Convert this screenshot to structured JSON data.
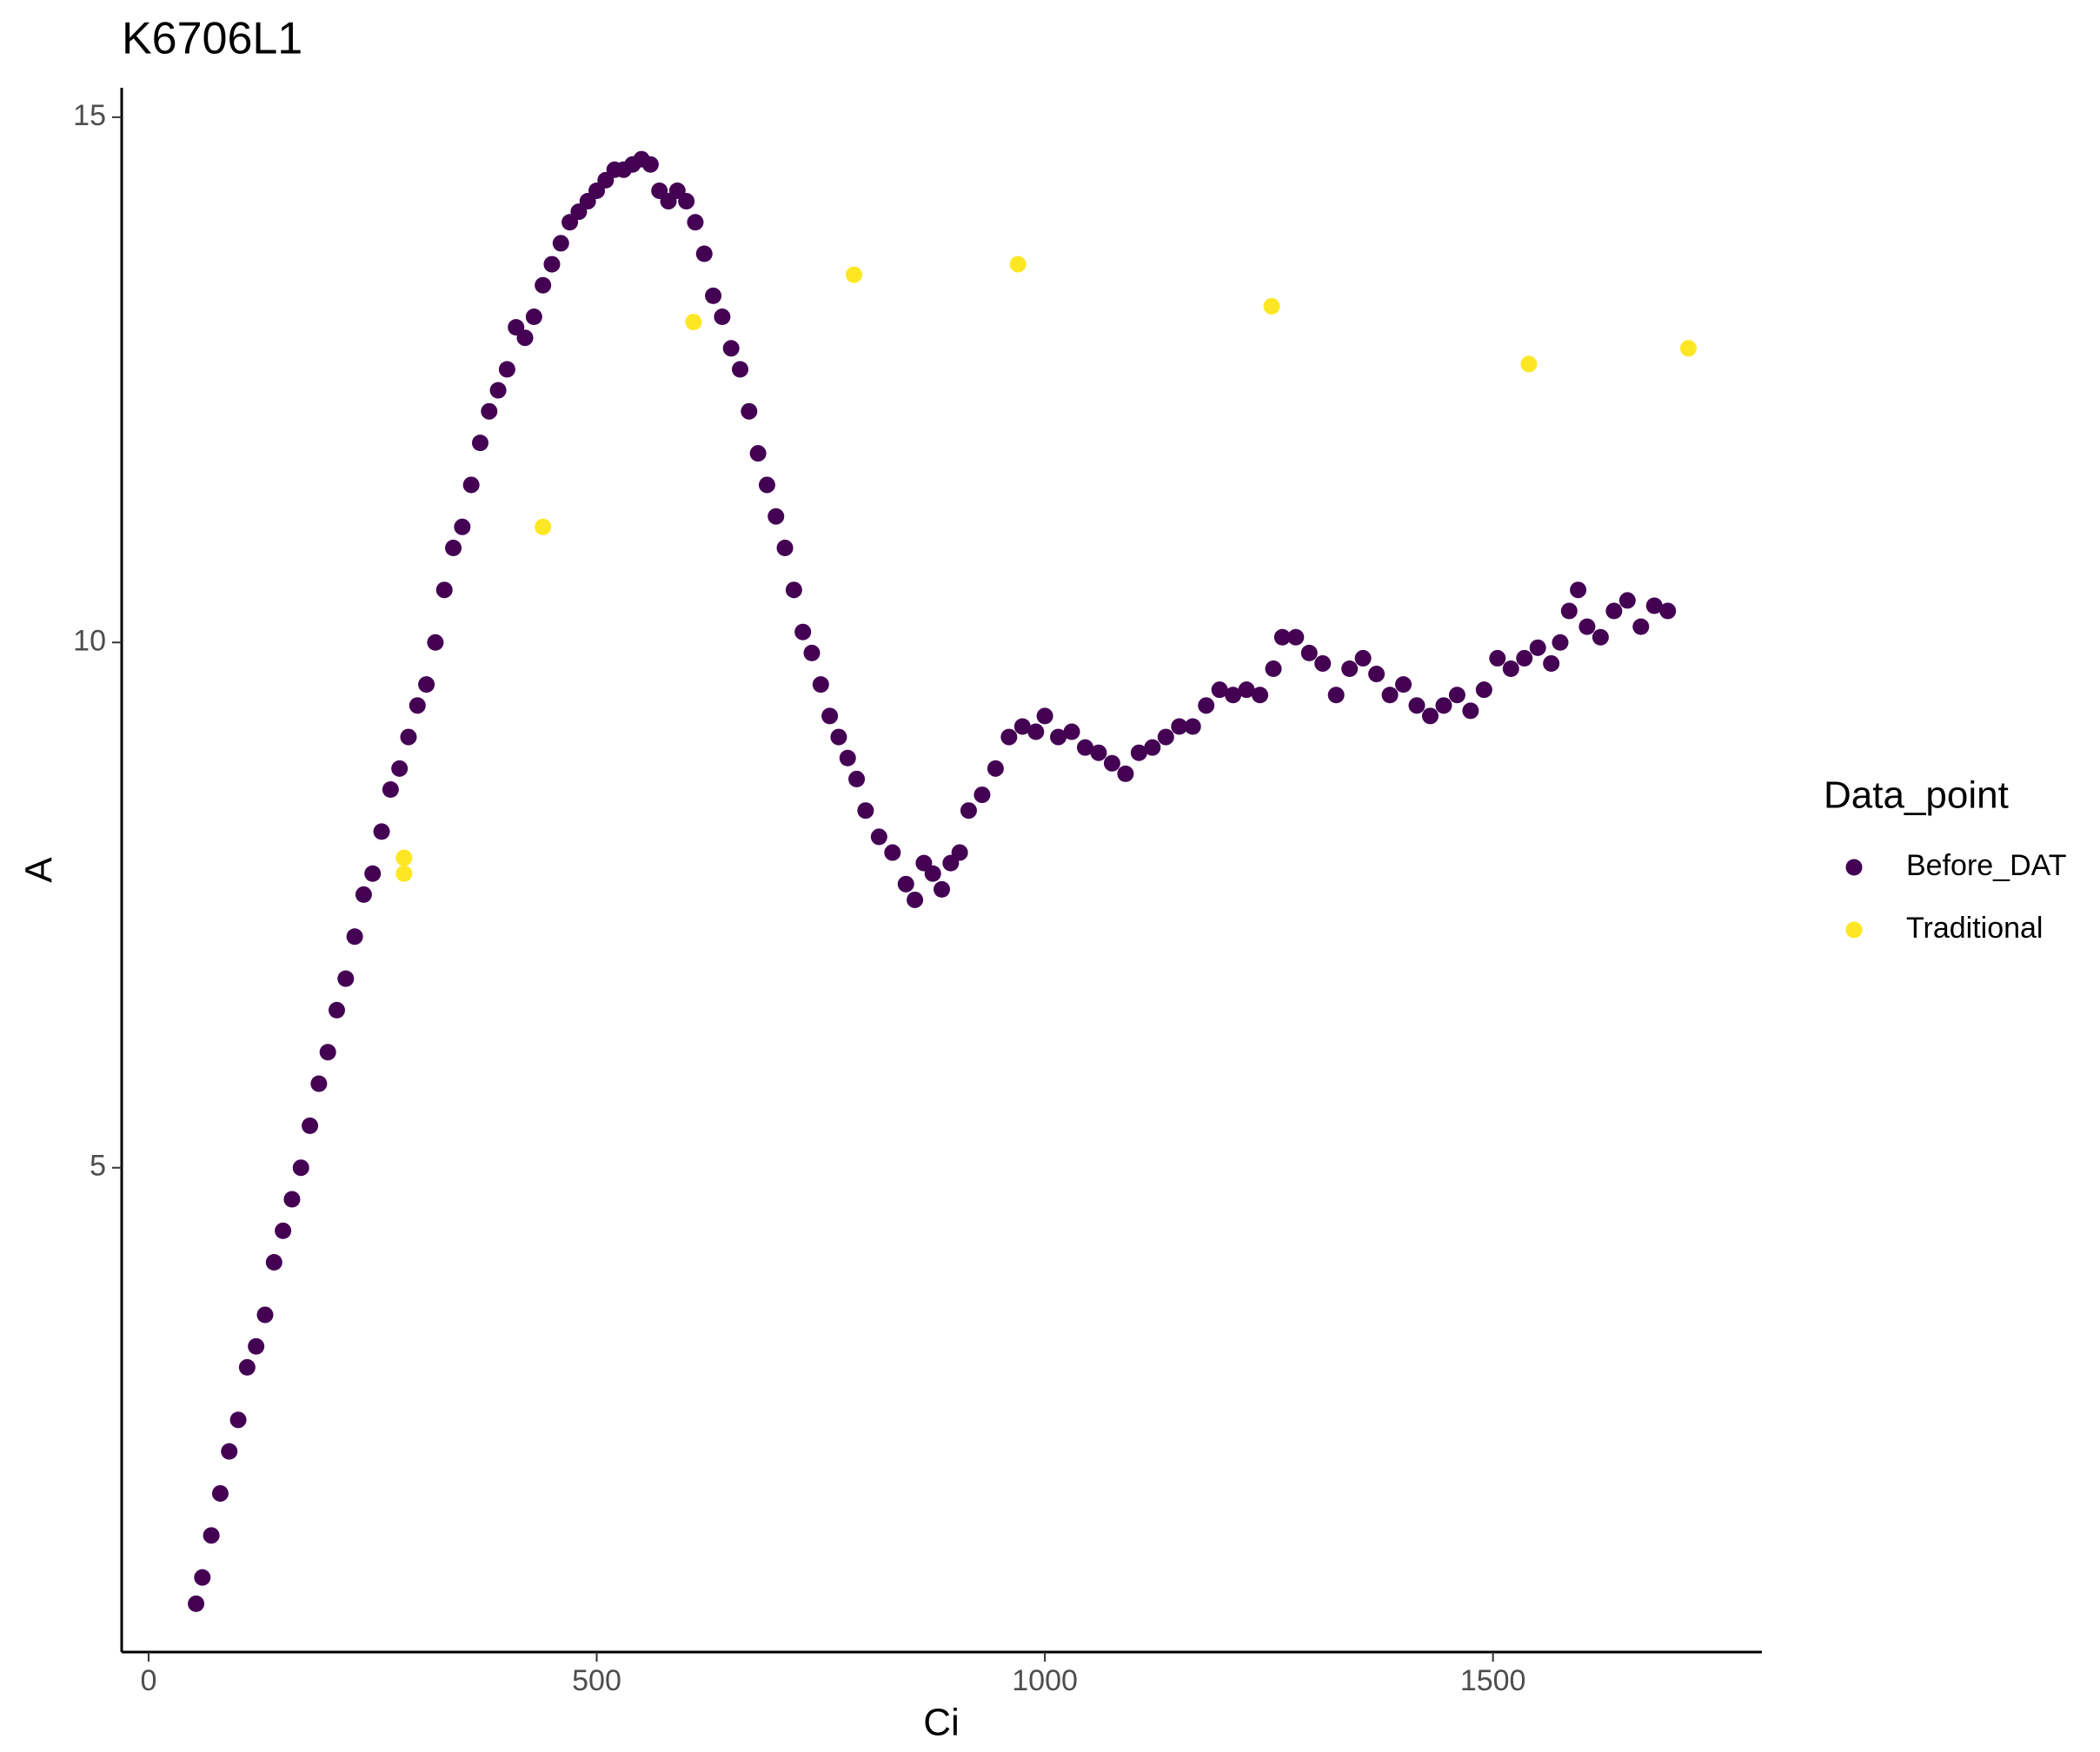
{
  "chart_data": {
    "type": "scatter",
    "title": "K6706L1",
    "x_label": "Ci",
    "y_label": "A",
    "legend_title": "Data_point",
    "legend_position": "right",
    "xlim": [
      -30,
      1800
    ],
    "ylim": [
      0.39,
      15.28
    ],
    "xticks": [
      0,
      500,
      1000,
      1500
    ],
    "yticks": [
      5,
      10,
      15
    ],
    "grid": false,
    "series": [
      {
        "name": "Before_DAT",
        "color": "#440154",
        "x": [
          53,
          60,
          70,
          80,
          90,
          100,
          110,
          120,
          130,
          140,
          150,
          160,
          170,
          180,
          190,
          200,
          210,
          220,
          230,
          240,
          250,
          260,
          270,
          280,
          290,
          300,
          310,
          320,
          330,
          340,
          350,
          360,
          370,
          380,
          390,
          400,
          410,
          420,
          430,
          440,
          450,
          460,
          470,
          480,
          490,
          500,
          510,
          520,
          530,
          540,
          550,
          560,
          570,
          580,
          590,
          600,
          610,
          620,
          630,
          640,
          650,
          660,
          670,
          680,
          690,
          700,
          710,
          720,
          730,
          740,
          750,
          760,
          770,
          780,
          790,
          800,
          815,
          830,
          845,
          855,
          865,
          875,
          885,
          895,
          905,
          915,
          930,
          945,
          960,
          975,
          990,
          1000,
          1015,
          1030,
          1045,
          1060,
          1075,
          1090,
          1105,
          1120,
          1135,
          1150,
          1165,
          1180,
          1195,
          1210,
          1225,
          1240,
          1255,
          1265,
          1280,
          1295,
          1310,
          1325,
          1340,
          1355,
          1370,
          1385,
          1400,
          1415,
          1430,
          1445,
          1460,
          1475,
          1490,
          1505,
          1520,
          1535,
          1550,
          1565,
          1575,
          1585,
          1595,
          1605,
          1620,
          1635,
          1650,
          1665,
          1680,
          1695
        ],
        "values": [
          0.85,
          1.1,
          1.5,
          1.9,
          2.3,
          2.6,
          3.1,
          3.3,
          3.6,
          4.1,
          4.4,
          4.7,
          5.0,
          5.4,
          5.8,
          6.1,
          6.5,
          6.8,
          7.2,
          7.6,
          7.8,
          8.2,
          8.6,
          8.8,
          9.1,
          9.4,
          9.6,
          10.0,
          10.5,
          10.9,
          11.1,
          11.5,
          11.9,
          12.2,
          12.4,
          12.6,
          13.0,
          12.9,
          13.1,
          13.4,
          13.6,
          13.8,
          14.0,
          14.1,
          14.2,
          14.3,
          14.4,
          14.5,
          14.5,
          14.55,
          14.6,
          14.55,
          14.3,
          14.2,
          14.3,
          14.2,
          14.0,
          13.7,
          13.3,
          13.1,
          12.8,
          12.6,
          12.2,
          11.8,
          11.5,
          11.2,
          10.9,
          10.5,
          10.1,
          9.9,
          9.6,
          9.3,
          9.1,
          8.9,
          8.7,
          8.4,
          8.15,
          8.0,
          7.7,
          7.55,
          7.9,
          7.8,
          7.65,
          7.9,
          8.0,
          8.4,
          8.55,
          8.8,
          9.1,
          9.2,
          9.15,
          9.3,
          9.1,
          9.15,
          9.0,
          8.95,
          8.85,
          8.75,
          8.95,
          9.0,
          9.1,
          9.2,
          9.2,
          9.4,
          9.55,
          9.5,
          9.55,
          9.5,
          9.75,
          10.05,
          10.05,
          9.9,
          9.8,
          9.5,
          9.75,
          9.85,
          9.7,
          9.5,
          9.6,
          9.4,
          9.3,
          9.4,
          9.5,
          9.35,
          9.55,
          9.85,
          9.75,
          9.85,
          9.95,
          9.8,
          10.0,
          10.3,
          10.5,
          10.15,
          10.05,
          10.3,
          10.4,
          10.15,
          10.35,
          10.3
        ]
      },
      {
        "name": "Traditional",
        "color": "#FDE725",
        "x": [
          285,
          285,
          440,
          608,
          787,
          970,
          1253,
          1540,
          1718
        ],
        "values": [
          7.95,
          7.8,
          11.1,
          13.05,
          13.5,
          13.6,
          13.2,
          12.65,
          12.8
        ]
      }
    ]
  }
}
